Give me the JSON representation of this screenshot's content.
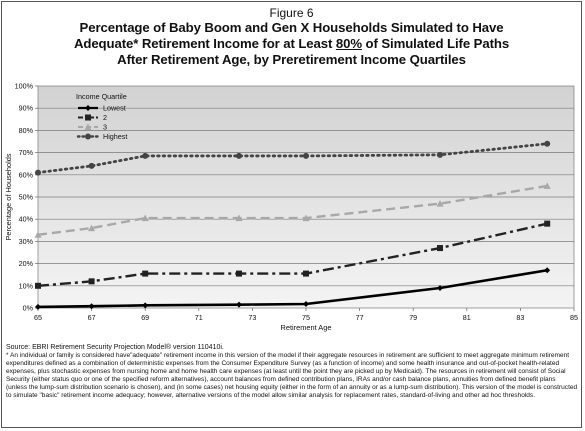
{
  "figure_label": "Figure 6",
  "title_line_1": "Percentage of Baby Boom and Gen X Households Simulated to Have",
  "title_line_2_prefix": "Adequate* Retirement Income for at Least ",
  "title_line_2_emph": "80%",
  "title_line_2_suffix": " of Simulated Life Paths",
  "title_line_3": "After Retirement Age, by Preretirement Income Quartiles",
  "source": "Source: EBRI Retirement Security Projection Model® version 110410i.",
  "footnote": "* An individual or family is considered have\"adequate\" retirement income in this version of the model if their aggregate resources in retirement are sufficient to meet aggregate minimum retirement expenditures defined as a combination of deterministic expenses from the Consumer Expenditure Survey (as a function of income) and some health insurance and out-of-pocket health-related expenses, plus stochastic expenses from nursing home and home health care expenses (at least until the point they are picked up by Medicaid). The resources in retirement will consist of Social Security (either status quo or one of the specified reform alternatives), account balances from defined contribution plans, IRAs and/or cash balance plans, annuities from defined benefit plans (unless the lump-sum distribution scenario is chosen), and (in some cases) net housing equity (either in the form of an annuity or as a lump-sum distribution). This version of the model is constructed to simulate \"basic\" retirement income adequacy; however, alternative versions of the model allow similar analysis for replacement rates, standard-of-living and other ad hoc thresholds.",
  "chart_data": {
    "type": "line",
    "xlabel": "Retirement Age",
    "ylabel": "Percentage of Households",
    "xlim": [
      65,
      85
    ],
    "ylim": [
      0,
      100
    ],
    "x_ticks": [
      "65",
      "67",
      "69",
      "71",
      "73",
      "75",
      "77",
      "79",
      "81",
      "83",
      "85"
    ],
    "y_ticks": [
      "0%",
      "10%",
      "20%",
      "30%",
      "40%",
      "50%",
      "60%",
      "70%",
      "80%",
      "90%",
      "100%"
    ],
    "grid": true,
    "legend_title": "Income Quartile",
    "legend_position": "top-left",
    "x": [
      65,
      67,
      69,
      72.5,
      75,
      80,
      84
    ],
    "series": [
      {
        "name": "Lowest",
        "values": [
          0.5,
          0.8,
          1.2,
          1.5,
          1.8,
          9,
          17
        ],
        "color": "#000000",
        "dash": "solid",
        "marker": "diamond"
      },
      {
        "name": "2",
        "values": [
          10,
          12,
          15.5,
          15.5,
          15.5,
          27,
          38
        ],
        "color": "#222222",
        "dash": "dashdot",
        "marker": "square"
      },
      {
        "name": "3",
        "values": [
          33,
          36,
          40.5,
          40.5,
          40.5,
          47,
          55
        ],
        "color": "#a8a8a8",
        "dash": "dash",
        "marker": "triangle"
      },
      {
        "name": "Highest",
        "values": [
          61,
          64,
          68.5,
          68.5,
          68.5,
          69,
          74
        ],
        "color": "#444444",
        "dash": "dot",
        "marker": "circle"
      }
    ]
  }
}
